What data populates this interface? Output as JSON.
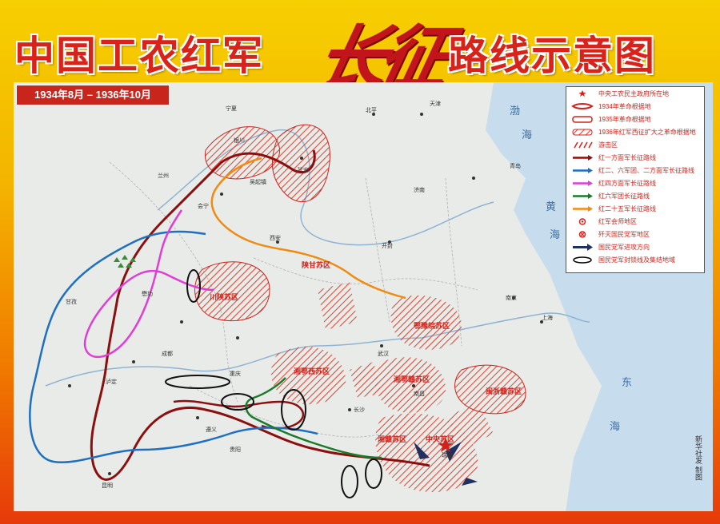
{
  "title": {
    "left": "中国工农红军",
    "calligraphy": "长征",
    "right": "路线示意图"
  },
  "date_range": "1934年8月 – 1936年10月",
  "legend": {
    "items": [
      {
        "label": "中央工农民主政府所在地",
        "symbol": "star",
        "color": "#d1231a"
      },
      {
        "label": "1934年革命根据地",
        "symbol": "outline",
        "color": "#d1231a"
      },
      {
        "label": "1935年革命根据地",
        "symbol": "outline",
        "color": "#d1231a"
      },
      {
        "label": "1936年红军西征扩大之革命根据地",
        "symbol": "hatch-outline",
        "color": "#d1231a"
      },
      {
        "label": "游击区",
        "symbol": "hatch",
        "color": "#d1231a"
      },
      {
        "label": "红一方面军长征路线",
        "symbol": "arrow",
        "color": "#8b0f0f"
      },
      {
        "label": "红二、六军团、二方面军长征路线",
        "symbol": "arrow",
        "color": "#1f6fc1"
      },
      {
        "label": "红四方面军长征路线",
        "symbol": "arrow",
        "color": "#e23cd6"
      },
      {
        "label": "红六军团长征路线",
        "symbol": "arrow",
        "color": "#1a7a2a"
      },
      {
        "label": "红二十五军长征路线",
        "symbol": "arrow",
        "color": "#f08a10"
      },
      {
        "label": "红军会师地区",
        "symbol": "circle",
        "color": "#d1231a"
      },
      {
        "label": "歼灭国民党军地区",
        "symbol": "cross-circle",
        "color": "#d1231a"
      },
      {
        "label": "国民党军进攻方向",
        "symbol": "enemy-arrow",
        "color": "#203060"
      },
      {
        "label": "国民党军封锁线及集结地域",
        "symbol": "ellipse",
        "color": "#000000"
      }
    ]
  },
  "seas": [
    "渤",
    "海",
    "黄",
    "海",
    "东",
    "海"
  ],
  "bases": [
    "陕甘苏区",
    "川陕苏区",
    "鄂豫皖苏区",
    "湘鄂西苏区",
    "湘鄂赣苏区",
    "闽浙赣苏区",
    "湘赣苏区",
    "中央苏区"
  ],
  "places": [
    "宁夏",
    "银川",
    "延安",
    "西安",
    "兰州",
    "成都",
    "贵阳",
    "昆明",
    "重庆",
    "长沙",
    "南昌",
    "武汉",
    "南京",
    "上海",
    "北平",
    "天津",
    "青岛",
    "开封",
    "济南",
    "遵义",
    "瑞金",
    "会宁",
    "吴起镇",
    "甘孜",
    "泸定",
    "懋功"
  ],
  "credit": "新华社发 制图"
}
